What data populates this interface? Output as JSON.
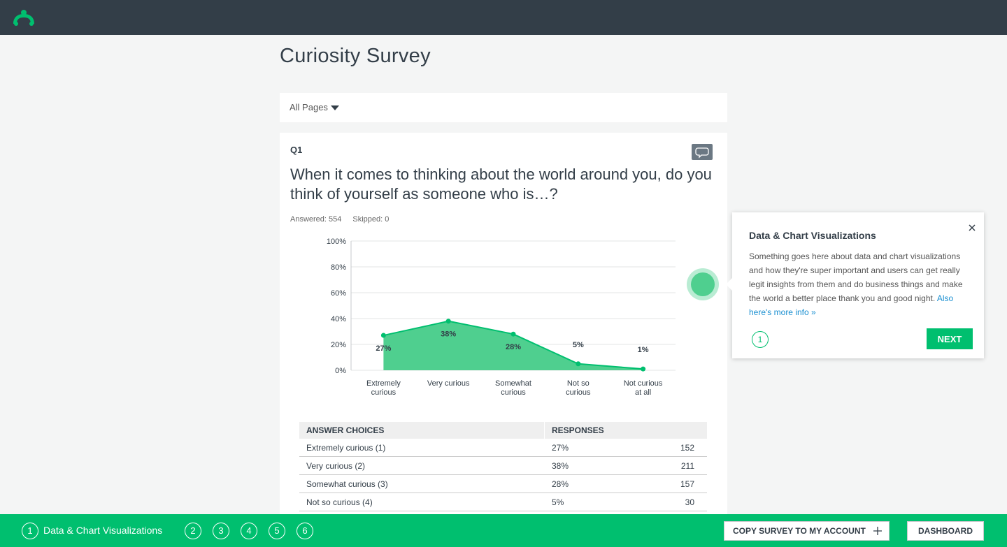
{
  "page_title": "Curiosity Survey",
  "filter": "All Pages",
  "question": {
    "number": "Q1",
    "text": "When it comes to thinking about the world around you, do you think of yourself as someone who is…?",
    "answered": "Answered: 554",
    "skipped": "Skipped: 0"
  },
  "chart_data": {
    "type": "area",
    "categories": [
      "Extremely curious",
      "Very curious",
      "Somewhat curious",
      "Not so curious",
      "Not curious at all"
    ],
    "values": [
      27,
      38,
      28,
      5,
      1
    ],
    "value_labels": [
      "27%",
      "38%",
      "28%",
      "5%",
      "1%"
    ],
    "color": "#4fcf8f",
    "line_color": "#00bf6f",
    "ylim": [
      0,
      100
    ],
    "yticks": [
      {
        "value": 0,
        "label": "0%"
      },
      {
        "value": 20,
        "label": "20%"
      },
      {
        "value": 40,
        "label": "40%"
      },
      {
        "value": 60,
        "label": "60%"
      },
      {
        "value": 80,
        "label": "80%"
      },
      {
        "value": 100,
        "label": "100%"
      }
    ],
    "grid": true
  },
  "table": {
    "columns": [
      "ANSWER CHOICES",
      "RESPONSES"
    ],
    "rows": [
      [
        "Extremely curious (1)",
        "27%",
        "152"
      ],
      [
        "Very curious (2)",
        "38%",
        "211"
      ],
      [
        "Somewhat curious (3)",
        "28%",
        "157"
      ],
      [
        "Not so curious (4)",
        "5%",
        "30"
      ]
    ]
  },
  "tooltip": {
    "title": "Data & Chart Visualizations",
    "body": "Something goes here about data and chart visualizations and how they're super important and users can get really legit insights from them and do business things and make the world a better place thank you and good night.",
    "link": "Also here's more info »",
    "step": "1",
    "button": "NEXT"
  },
  "footer": {
    "steps": [
      "1",
      "2",
      "3",
      "4",
      "5",
      "6"
    ],
    "step_label": "Data & Chart Visualizations",
    "buttons": [
      "COPY SURVEY TO MY ACCOUNT",
      "DASHBOARD"
    ]
  }
}
